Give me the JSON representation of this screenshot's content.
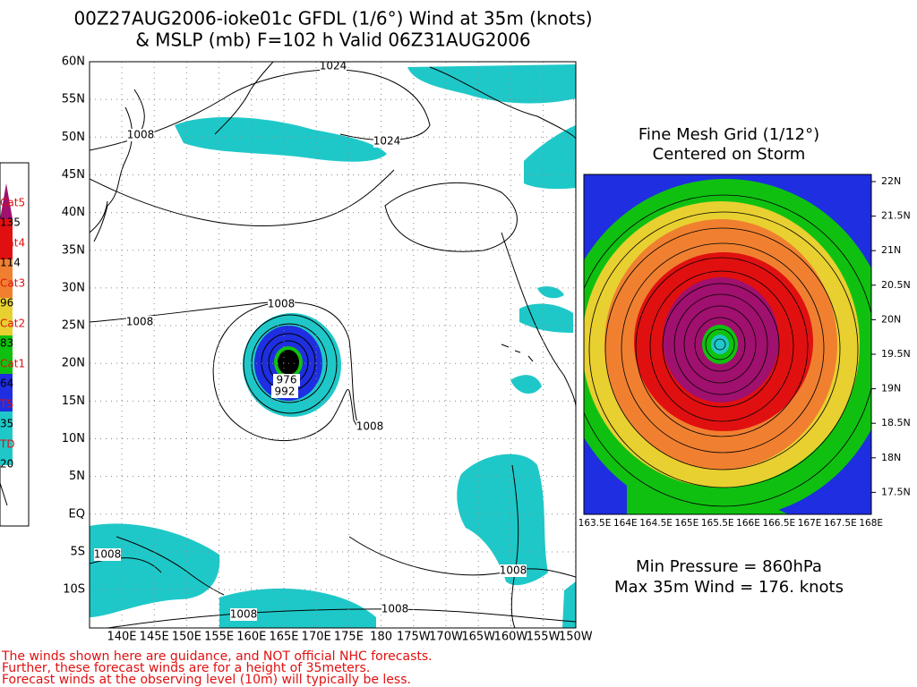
{
  "title": {
    "line1": "00Z27AUG2006-ioke01c GFDL (1/6°) Wind at 35m (knots)",
    "line2": "& MSLP (mb) F=102 h Valid 06Z31AUG2006"
  },
  "main_map": {
    "lat_labels": [
      "60N",
      "55N",
      "50N",
      "45N",
      "40N",
      "35N",
      "30N",
      "25N",
      "20N",
      "15N",
      "10N",
      "5N",
      "EQ",
      "5S",
      "10S"
    ],
    "lon_labels": [
      "140E",
      "145E",
      "150E",
      "155E",
      "160E",
      "165E",
      "170E",
      "175E",
      "180",
      "175W",
      "170W",
      "165W",
      "160W",
      "155W",
      "150W"
    ],
    "contour_labels": [
      1024,
      1008,
      1024,
      1008,
      1008,
      976,
      992,
      1008,
      1008,
      1008,
      1008,
      1008
    ]
  },
  "legend": {
    "entries": [
      {
        "category": "Cat5",
        "threshold": 135
      },
      {
        "category": "Cat4",
        "threshold": 114
      },
      {
        "category": "Cat3",
        "threshold": 96
      },
      {
        "category": "Cat2",
        "threshold": 83
      },
      {
        "category": "Cat1",
        "threshold": 64
      },
      {
        "category": "TS",
        "threshold": 35
      },
      {
        "category": "TD",
        "threshold": 20
      }
    ]
  },
  "inset": {
    "title_line1": "Fine Mesh Grid (1/12°)",
    "title_line2": "Centered on Storm",
    "lat_labels": [
      "22N",
      "21.5N",
      "21N",
      "20.5N",
      "20N",
      "19.5N",
      "19N",
      "18.5N",
      "18N",
      "17.5N"
    ],
    "lon_labels": [
      "163.5E",
      "164E",
      "164.5E",
      "165E",
      "165.5E",
      "166E",
      "166.5E",
      "167E",
      "167.5E",
      "168E"
    ]
  },
  "stats": {
    "min_pressure": "Min Pressure = 860hPa",
    "max_wind": "Max 35m Wind = 176. knots"
  },
  "footer": {
    "lines": [
      "The winds shown here are guidance, and NOT official NHC forecasts.",
      "Further, these forecast winds are for a height of 35meters.",
      "Forecast winds at the observing level (10m) will typically be less."
    ]
  }
}
